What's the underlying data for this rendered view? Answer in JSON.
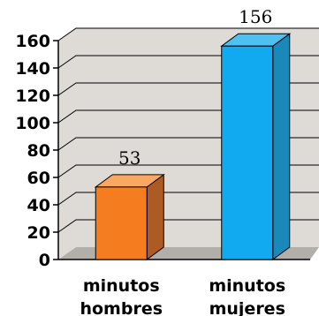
{
  "chart_data": {
    "type": "bar",
    "categories": [
      [
        "minutos",
        "hombres"
      ],
      [
        "minutos",
        "mujeres"
      ]
    ],
    "values": [
      53,
      156
    ],
    "data_labels": [
      "53",
      "156"
    ],
    "ylim": [
      0,
      160
    ],
    "yticks": [
      0,
      20,
      40,
      60,
      80,
      100,
      120,
      140,
      160
    ],
    "grid": true,
    "three_d": true,
    "bar_colors": [
      {
        "front": "#f57d1f",
        "side": "#ad5a24",
        "top": "#f8a860"
      },
      {
        "front": "#11aaf0",
        "side": "#1a88b8",
        "top": "#4fc0f2"
      }
    ],
    "wall_color": "#dedad6",
    "floor_color": "#b2aeaa"
  }
}
